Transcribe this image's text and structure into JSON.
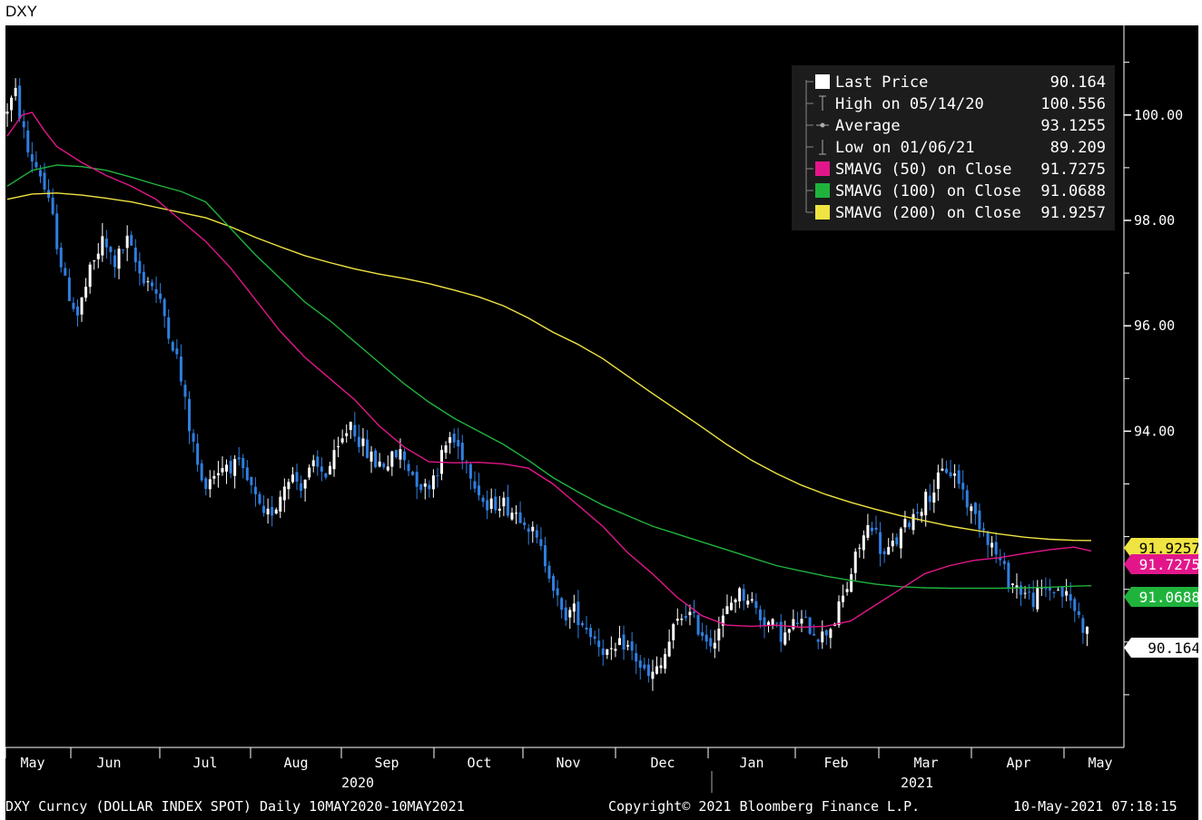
{
  "title": "DXY",
  "footer": {
    "left": "DXY Curncy (DOLLAR INDEX SPOT)  Daily 10MAY2020-10MAY2021",
    "copyright": "Copyright© 2021 Bloomberg Finance L.P.",
    "timestamp": "10-May-2021 07:18:15"
  },
  "chart_data": {
    "type": "line",
    "subtype": "candlestick-with-moving-averages",
    "ylim": [
      88,
      101.7
    ],
    "y_ticks": [
      "100.00",
      "98.00",
      "96.00",
      "94.00"
    ],
    "x_labels": [
      "May",
      "Jun",
      "Jul",
      "Aug",
      "Sep",
      "Oct",
      "Nov",
      "Dec",
      "Jan",
      "Feb",
      "Mar",
      "Apr",
      "May"
    ],
    "x_year_labels": [
      "2020",
      "2021"
    ],
    "legend": [
      {
        "label": "Last Price",
        "value": "90.164",
        "color": "#ffffff",
        "marker": "square"
      },
      {
        "label": "High on 05/14/20",
        "value": "100.556",
        "color": "#aaaaaa",
        "marker": "high"
      },
      {
        "label": "Average",
        "value": "93.1255",
        "color": "#aaaaaa",
        "marker": "avg"
      },
      {
        "label": "Low on 01/06/21",
        "value": "89.209",
        "color": "#aaaaaa",
        "marker": "low"
      },
      {
        "label": "SMAVG (50)  on Close",
        "value": "91.7275",
        "color": "#e2168a",
        "marker": "square"
      },
      {
        "label": "SMAVG (100)  on Close",
        "value": "91.0688",
        "color": "#1fb33c",
        "marker": "square"
      },
      {
        "label": "SMAVG (200)  on Close",
        "value": "91.9257",
        "color": "#f0e442",
        "marker": "square"
      }
    ],
    "badges": [
      {
        "text": "91.9257",
        "value": 91.9257,
        "color": "#f0e442",
        "text_color": "#000000"
      },
      {
        "text": "91.7275",
        "value": 91.7275,
        "color": "#e2168a",
        "text_color": "#ffffff"
      },
      {
        "text": "91.0688",
        "value": 91.0688,
        "color": "#1fb33c",
        "text_color": "#ffffff"
      },
      {
        "text": "90.164",
        "value": 90.164,
        "color": "#ffffff",
        "text_color": "#000000"
      }
    ],
    "price_path": [
      [
        0,
        100.0
      ],
      [
        5,
        100.4
      ],
      [
        10,
        99.3
      ],
      [
        15,
        98.9
      ],
      [
        20,
        98.0
      ],
      [
        25,
        96.8
      ],
      [
        30,
        96.2
      ],
      [
        35,
        97.0
      ],
      [
        40,
        97.6
      ],
      [
        45,
        97.2
      ],
      [
        50,
        97.6
      ],
      [
        55,
        97.0
      ],
      [
        60,
        96.8
      ],
      [
        65,
        96.2
      ],
      [
        70,
        95.4
      ],
      [
        75,
        94.1
      ],
      [
        80,
        93.0
      ],
      [
        85,
        93.2
      ],
      [
        90,
        93.4
      ],
      [
        95,
        93.3
      ],
      [
        100,
        92.9
      ],
      [
        105,
        92.3
      ],
      [
        110,
        92.6
      ],
      [
        115,
        93.2
      ],
      [
        120,
        93.0
      ],
      [
        125,
        93.3
      ],
      [
        130,
        93.2
      ],
      [
        135,
        93.6
      ],
      [
        140,
        94.2
      ],
      [
        145,
        93.7
      ],
      [
        150,
        93.4
      ],
      [
        155,
        93.4
      ],
      [
        160,
        93.6
      ],
      [
        165,
        93.2
      ],
      [
        170,
        92.9
      ],
      [
        175,
        93.3
      ],
      [
        180,
        93.9
      ],
      [
        185,
        93.6
      ],
      [
        190,
        93.1
      ],
      [
        195,
        92.5
      ],
      [
        200,
        92.7
      ],
      [
        205,
        92.5
      ],
      [
        210,
        92.4
      ],
      [
        215,
        91.9
      ],
      [
        220,
        91.4
      ],
      [
        225,
        90.5
      ],
      [
        230,
        90.6
      ],
      [
        235,
        90.3
      ],
      [
        240,
        90.0
      ],
      [
        245,
        89.7
      ],
      [
        250,
        90.0
      ],
      [
        255,
        89.7
      ],
      [
        260,
        89.3
      ],
      [
        265,
        89.5
      ],
      [
        270,
        90.2
      ],
      [
        275,
        90.6
      ],
      [
        280,
        90.3
      ],
      [
        285,
        90.0
      ],
      [
        290,
        90.4
      ],
      [
        295,
        90.9
      ],
      [
        300,
        90.9
      ],
      [
        305,
        90.5
      ],
      [
        310,
        90.3
      ],
      [
        315,
        90.1
      ],
      [
        320,
        90.4
      ],
      [
        325,
        90.3
      ],
      [
        330,
        90.1
      ],
      [
        335,
        90.4
      ],
      [
        340,
        91.0
      ],
      [
        345,
        91.8
      ],
      [
        350,
        92.3
      ],
      [
        355,
        91.6
      ],
      [
        360,
        91.9
      ],
      [
        365,
        92.3
      ],
      [
        370,
        92.6
      ],
      [
        375,
        92.9
      ],
      [
        380,
        93.3
      ],
      [
        385,
        93.1
      ],
      [
        390,
        92.5
      ],
      [
        395,
        92.2
      ],
      [
        400,
        91.7
      ],
      [
        405,
        91.2
      ],
      [
        410,
        91.0
      ],
      [
        415,
        90.8
      ],
      [
        420,
        91.0
      ],
      [
        425,
        91.0
      ],
      [
        430,
        90.8
      ],
      [
        437,
        90.164
      ]
    ],
    "sma50": [
      [
        0,
        99.6
      ],
      [
        6,
        100.0
      ],
      [
        10,
        100.05
      ],
      [
        15,
        99.7
      ],
      [
        20,
        99.4
      ],
      [
        30,
        99.1
      ],
      [
        40,
        98.85
      ],
      [
        50,
        98.65
      ],
      [
        60,
        98.4
      ],
      [
        70,
        98.0
      ],
      [
        80,
        97.6
      ],
      [
        90,
        97.1
      ],
      [
        100,
        96.5
      ],
      [
        110,
        95.9
      ],
      [
        120,
        95.4
      ],
      [
        130,
        95.0
      ],
      [
        140,
        94.6
      ],
      [
        150,
        94.1
      ],
      [
        160,
        93.7
      ],
      [
        170,
        93.42
      ],
      [
        180,
        93.4
      ],
      [
        190,
        93.41
      ],
      [
        200,
        93.38
      ],
      [
        210,
        93.3
      ],
      [
        220,
        93.0
      ],
      [
        230,
        92.6
      ],
      [
        240,
        92.2
      ],
      [
        250,
        91.7
      ],
      [
        260,
        91.3
      ],
      [
        270,
        90.85
      ],
      [
        280,
        90.5
      ],
      [
        290,
        90.32
      ],
      [
        300,
        90.3
      ],
      [
        310,
        90.32
      ],
      [
        320,
        90.28
      ],
      [
        330,
        90.3
      ],
      [
        340,
        90.4
      ],
      [
        350,
        90.7
      ],
      [
        360,
        91.0
      ],
      [
        370,
        91.3
      ],
      [
        380,
        91.45
      ],
      [
        390,
        91.55
      ],
      [
        400,
        91.6
      ],
      [
        410,
        91.68
      ],
      [
        420,
        91.75
      ],
      [
        430,
        91.8
      ],
      [
        437,
        91.7275
      ]
    ],
    "sma100": [
      [
        0,
        98.65
      ],
      [
        10,
        98.95
      ],
      [
        20,
        99.05
      ],
      [
        30,
        99.02
      ],
      [
        40,
        98.95
      ],
      [
        50,
        98.82
      ],
      [
        60,
        98.68
      ],
      [
        70,
        98.55
      ],
      [
        80,
        98.35
      ],
      [
        90,
        97.85
      ],
      [
        100,
        97.35
      ],
      [
        110,
        96.9
      ],
      [
        120,
        96.45
      ],
      [
        130,
        96.1
      ],
      [
        140,
        95.7
      ],
      [
        150,
        95.3
      ],
      [
        160,
        94.9
      ],
      [
        170,
        94.55
      ],
      [
        180,
        94.25
      ],
      [
        190,
        94.0
      ],
      [
        200,
        93.75
      ],
      [
        210,
        93.45
      ],
      [
        220,
        93.12
      ],
      [
        230,
        92.85
      ],
      [
        240,
        92.6
      ],
      [
        250,
        92.4
      ],
      [
        260,
        92.2
      ],
      [
        270,
        92.05
      ],
      [
        280,
        91.9
      ],
      [
        290,
        91.75
      ],
      [
        300,
        91.6
      ],
      [
        310,
        91.45
      ],
      [
        320,
        91.35
      ],
      [
        330,
        91.25
      ],
      [
        340,
        91.17
      ],
      [
        350,
        91.1
      ],
      [
        360,
        91.05
      ],
      [
        370,
        91.03
      ],
      [
        380,
        91.02
      ],
      [
        390,
        91.02
      ],
      [
        400,
        91.02
      ],
      [
        410,
        91.03
      ],
      [
        420,
        91.04
      ],
      [
        430,
        91.06
      ],
      [
        437,
        91.0688
      ]
    ],
    "sma200": [
      [
        0,
        98.4
      ],
      [
        10,
        98.5
      ],
      [
        20,
        98.52
      ],
      [
        30,
        98.48
      ],
      [
        40,
        98.42
      ],
      [
        50,
        98.35
      ],
      [
        60,
        98.25
      ],
      [
        70,
        98.15
      ],
      [
        80,
        98.05
      ],
      [
        90,
        97.88
      ],
      [
        100,
        97.68
      ],
      [
        110,
        97.5
      ],
      [
        120,
        97.33
      ],
      [
        130,
        97.2
      ],
      [
        140,
        97.08
      ],
      [
        150,
        96.98
      ],
      [
        160,
        96.9
      ],
      [
        170,
        96.8
      ],
      [
        180,
        96.68
      ],
      [
        190,
        96.55
      ],
      [
        200,
        96.38
      ],
      [
        210,
        96.15
      ],
      [
        220,
        95.88
      ],
      [
        230,
        95.65
      ],
      [
        240,
        95.38
      ],
      [
        250,
        95.05
      ],
      [
        260,
        94.72
      ],
      [
        270,
        94.4
      ],
      [
        280,
        94.08
      ],
      [
        290,
        93.75
      ],
      [
        300,
        93.45
      ],
      [
        310,
        93.2
      ],
      [
        320,
        92.98
      ],
      [
        330,
        92.8
      ],
      [
        340,
        92.65
      ],
      [
        350,
        92.52
      ],
      [
        360,
        92.4
      ],
      [
        370,
        92.3
      ],
      [
        380,
        92.2
      ],
      [
        390,
        92.12
      ],
      [
        400,
        92.05
      ],
      [
        410,
        91.99
      ],
      [
        420,
        91.95
      ],
      [
        430,
        91.93
      ],
      [
        437,
        91.9257
      ]
    ]
  }
}
